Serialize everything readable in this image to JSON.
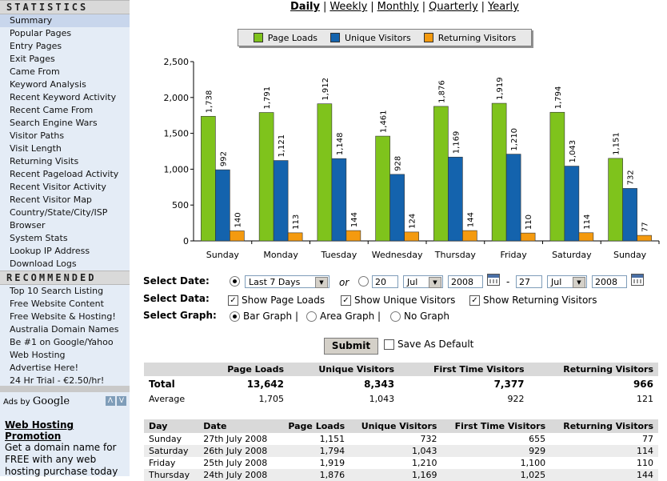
{
  "sidebar": {
    "statistics_header": "STATISTICS",
    "statistics_items": [
      "Summary",
      "Popular Pages",
      "Entry Pages",
      "Exit Pages",
      "Came From",
      "Keyword Analysis",
      "Recent Keyword Activity",
      "Recent Came From",
      "Search Engine Wars",
      "Visitor Paths",
      "Visit Length",
      "Returning Visits",
      "Recent Pageload Activity",
      "Recent Visitor Activity",
      "Recent Visitor Map",
      "Country/State/City/ISP",
      "Browser",
      "System Stats",
      "Lookup IP Address",
      "Download Logs"
    ],
    "recommended_header": "RECOMMENDED",
    "recommended_items": [
      "Top 10 Search Listing",
      "Free Website Content",
      "Free Website & Hosting!",
      "Australia Domain Names",
      "Be #1 on Google/Yahoo",
      "Web Hosting",
      "Advertise Here!",
      "24 Hr Trial - €2.50/hr!"
    ],
    "ads": {
      "ads_by": "Ads by",
      "google": "Google",
      "prev": "Λ",
      "next": "V",
      "ad_title": "Web Hosting Promotion",
      "ad_text": "Get a domain name for FREE with any web hosting purchase today"
    }
  },
  "period_nav": {
    "items": [
      "Daily",
      "Weekly",
      "Monthly",
      "Quarterly",
      "Yearly"
    ],
    "selected": "Daily",
    "separator": "|"
  },
  "legend": {
    "page_loads": "Page Loads",
    "unique_visitors": "Unique Visitors",
    "returning_visitors": "Returning Visitors"
  },
  "colors": {
    "page_loads": "#7fc31c",
    "unique_visitors": "#1463ad",
    "returning_visitors": "#f49a0f"
  },
  "chart_data": {
    "type": "bar",
    "categories": [
      "Sunday",
      "Monday",
      "Tuesday",
      "Wednesday",
      "Thursday",
      "Friday",
      "Saturday",
      "Sunday"
    ],
    "series": [
      {
        "name": "Page Loads",
        "values": [
          1738,
          1791,
          1912,
          1461,
          1876,
          1919,
          1794,
          1151
        ]
      },
      {
        "name": "Unique Visitors",
        "values": [
          992,
          1121,
          1148,
          928,
          1169,
          1210,
          1043,
          732
        ]
      },
      {
        "name": "Returning Visitors",
        "values": [
          140,
          113,
          144,
          124,
          144,
          110,
          114,
          77
        ]
      }
    ],
    "data_labels": [
      [
        "1,738",
        "1,791",
        "1,912",
        "1,461",
        "1,876",
        "1,919",
        "1,794",
        "1,151"
      ],
      [
        "992",
        "1,121",
        "1,148",
        "928",
        "1,169",
        "1,210",
        "1,043",
        "732"
      ],
      [
        "140",
        "113",
        "144",
        "124",
        "144",
        "110",
        "114",
        "77"
      ]
    ],
    "ylim": [
      0,
      2500
    ],
    "yticks": [
      0,
      500,
      1000,
      1500,
      2000,
      2500
    ],
    "ytick_labels": [
      "0",
      "500",
      "1,000",
      "1,500",
      "2,000",
      "2,500"
    ],
    "legend_position": "top",
    "grid": false
  },
  "form": {
    "select_date_label": "Select Date:",
    "range_value": "Last 7 Days",
    "or_label": "or",
    "from_day": "20",
    "from_month": "Jul",
    "from_year": "2008",
    "dash": "-",
    "to_day": "27",
    "to_month": "Jul",
    "to_year": "2008",
    "select_data_label": "Select Data:",
    "show_page_loads": "Show Page Loads",
    "show_unique_visitors": "Show Unique Visitors",
    "show_returning_visitors": "Show Returning Visitors",
    "select_graph_label": "Select Graph:",
    "bar_graph": "Bar Graph |",
    "area_graph": "Area Graph |",
    "no_graph": "No Graph",
    "submit": "Submit",
    "save_as_default": "Save As Default"
  },
  "summary_table": {
    "headers": [
      "",
      "Page Loads",
      "Unique Visitors",
      "First Time Visitors",
      "Returning Visitors"
    ],
    "rows": [
      [
        "Total",
        "13,642",
        "8,343",
        "7,377",
        "966"
      ],
      [
        "Average",
        "1,705",
        "1,043",
        "922",
        "121"
      ]
    ]
  },
  "daily_table": {
    "headers": [
      "Day",
      "Date",
      "Page Loads",
      "Unique Visitors",
      "First Time Visitors",
      "Returning Visitors"
    ],
    "rows": [
      [
        "Sunday",
        "27th July 2008",
        "1,151",
        "732",
        "655",
        "77"
      ],
      [
        "Saturday",
        "26th July 2008",
        "1,794",
        "1,043",
        "929",
        "114"
      ],
      [
        "Friday",
        "25th July 2008",
        "1,919",
        "1,210",
        "1,100",
        "110"
      ],
      [
        "Thursday",
        "24th July 2008",
        "1,876",
        "1,169",
        "1,025",
        "144"
      ]
    ]
  }
}
